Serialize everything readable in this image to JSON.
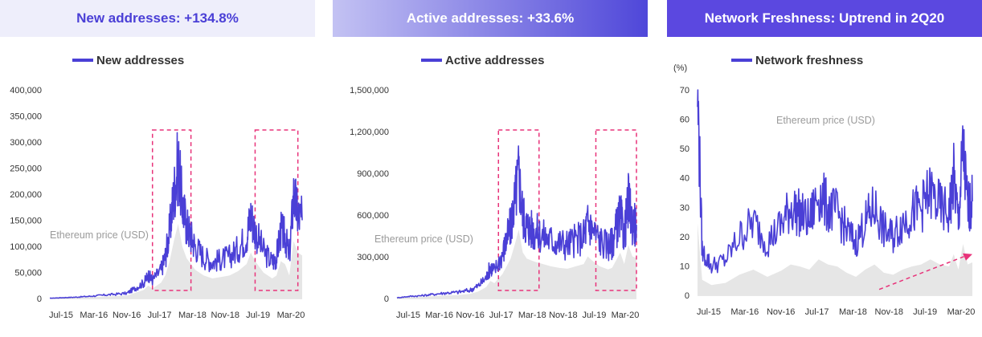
{
  "colors": {
    "series": "#4a3fd6",
    "price_fill": "#e6e6e6",
    "highlight": "#e8337a",
    "header1_bg": "#eeeefb",
    "header1_text": "#4a3fd6",
    "header2_bg_from": "#c3c2f3",
    "header2_bg_to": "#4f47d9",
    "header3_bg": "#5b48e0",
    "header_light_text": "#ffffff"
  },
  "panels": [
    {
      "header": "New addresses: +134.8%",
      "chart_data": {
        "type": "line",
        "legend": "New addresses",
        "overlay_label": "Ethereum price (USD)",
        "x_ticks": [
          "Jul-15",
          "Mar-16",
          "Nov-16",
          "Jul-17",
          "Mar-18",
          "Nov-18",
          "Jul-19",
          "Mar-20"
        ],
        "x_range": [
          "2015-07",
          "2020-06"
        ],
        "ylim": [
          0,
          400000
        ],
        "y_ticks": [
          "0",
          "50,000",
          "100,000",
          "150,000",
          "200,000",
          "250,000",
          "300,000",
          "350,000",
          "400,000"
        ],
        "series": [
          {
            "name": "New addresses",
            "x": [
              "2015-07",
              "2015-10",
              "2016-01",
              "2016-04",
              "2016-07",
              "2016-10",
              "2017-01",
              "2017-03",
              "2017-05",
              "2017-06",
              "2017-07",
              "2017-09",
              "2017-10",
              "2017-11",
              "2017-12",
              "2018-01",
              "2018-02",
              "2018-03",
              "2018-04",
              "2018-05",
              "2018-07",
              "2018-09",
              "2018-11",
              "2019-01",
              "2019-03",
              "2019-05",
              "2019-06",
              "2019-07",
              "2019-09",
              "2019-11",
              "2019-12",
              "2020-01",
              "2020-02",
              "2020-03",
              "2020-04",
              "2020-05",
              "2020-06"
            ],
            "values": [
              500,
              1500,
              2500,
              4000,
              6000,
              8000,
              10000,
              20000,
              30000,
              45000,
              35000,
              55000,
              80000,
              130000,
              200000,
              260000,
              180000,
              140000,
              120000,
              100000,
              80000,
              70000,
              75000,
              80000,
              95000,
              120000,
              160000,
              130000,
              90000,
              70000,
              80000,
              130000,
              120000,
              80000,
              200000,
              160000,
              150000
            ]
          }
        ],
        "highlight_ranges": [
          [
            "2017-07",
            "2018-04"
          ],
          [
            "2019-07",
            "2020-05"
          ]
        ]
      }
    },
    {
      "header": "Active addresses: +33.6%",
      "chart_data": {
        "type": "line",
        "legend": "Active addresses",
        "overlay_label": "Ethereum price (USD)",
        "x_ticks": [
          "Jul-15",
          "Mar-16",
          "Nov-16",
          "Jul-17",
          "Mar-18",
          "Nov-18",
          "Jul-19",
          "Mar-20"
        ],
        "x_range": [
          "2015-07",
          "2020-06"
        ],
        "ylim": [
          0,
          1500000
        ],
        "y_ticks": [
          "0",
          "300,000",
          "600,000",
          "900,000",
          "1,200,000",
          "1,500,000"
        ],
        "series": [
          {
            "name": "Active addresses",
            "x": [
              "2015-07",
              "2015-10",
              "2016-01",
              "2016-04",
              "2016-07",
              "2016-10",
              "2017-01",
              "2017-03",
              "2017-05",
              "2017-06",
              "2017-07",
              "2017-09",
              "2017-10",
              "2017-11",
              "2017-12",
              "2018-01",
              "2018-02",
              "2018-03",
              "2018-04",
              "2018-05",
              "2018-07",
              "2018-09",
              "2018-11",
              "2019-01",
              "2019-03",
              "2019-05",
              "2019-06",
              "2019-07",
              "2019-09",
              "2019-11",
              "2019-12",
              "2020-01",
              "2020-02",
              "2020-03",
              "2020-04",
              "2020-05",
              "2020-06"
            ],
            "values": [
              5000,
              15000,
              20000,
              30000,
              40000,
              45000,
              60000,
              90000,
              150000,
              230000,
              200000,
              320000,
              420000,
              520000,
              700000,
              900000,
              600000,
              520000,
              500000,
              480000,
              450000,
              420000,
              400000,
              390000,
              420000,
              450000,
              550000,
              500000,
              420000,
              380000,
              400000,
              500000,
              600000,
              450000,
              700000,
              550000,
              530000
            ]
          }
        ],
        "highlight_ranges": [
          [
            "2017-08",
            "2018-06"
          ],
          [
            "2019-08",
            "2020-06"
          ]
        ]
      }
    },
    {
      "header": "Network Freshness: Uptrend in 2Q20",
      "chart_data": {
        "type": "line",
        "legend": "Network freshness",
        "overlay_label": "Ethereum price (USD)",
        "unit": "(%)",
        "x_ticks": [
          "Jul-15",
          "Mar-16",
          "Nov-16",
          "Jul-17",
          "Mar-18",
          "Nov-18",
          "Jul-19",
          "Mar-20"
        ],
        "x_range": [
          "2015-07",
          "2020-06"
        ],
        "ylim": [
          0,
          70
        ],
        "y_ticks": [
          "0",
          "10",
          "20",
          "30",
          "40",
          "50",
          "60",
          "70"
        ],
        "series": [
          {
            "name": "Network freshness",
            "x": [
              "2015-07",
              "2015-08",
              "2015-10",
              "2016-01",
              "2016-04",
              "2016-07",
              "2016-10",
              "2017-01",
              "2017-03",
              "2017-05",
              "2017-07",
              "2017-09",
              "2017-11",
              "2018-01",
              "2018-03",
              "2018-05",
              "2018-07",
              "2018-09",
              "2018-11",
              "2019-01",
              "2019-03",
              "2019-05",
              "2019-07",
              "2019-09",
              "2019-11",
              "2020-01",
              "2020-02",
              "2020-03",
              "2020-04",
              "2020-05",
              "2020-06"
            ],
            "values": [
              70,
              15,
              10,
              12,
              20,
              25,
              18,
              24,
              30,
              28,
              25,
              35,
              30,
              28,
              22,
              18,
              25,
              30,
              22,
              20,
              25,
              28,
              30,
              35,
              30,
              28,
              40,
              25,
              50,
              30,
              32
            ]
          }
        ],
        "trend_arrow": [
          "2018-10",
          "2020-06"
        ]
      }
    }
  ]
}
